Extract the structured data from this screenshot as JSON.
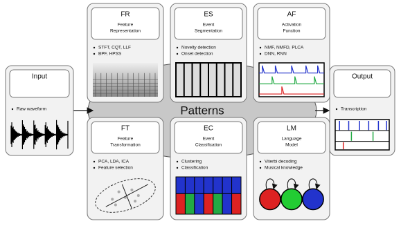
{
  "center_label": "Patterns",
  "input": {
    "title": "Input",
    "bullets": [
      "Raw waveform"
    ]
  },
  "output": {
    "title": "Output",
    "bullets": [
      "Transcription"
    ]
  },
  "nodes": [
    {
      "abbr": "FR",
      "title_lines": [
        "Feature",
        "Representation"
      ],
      "bullets": [
        "STFT, CQT, LLF",
        "BPF, HPSS"
      ]
    },
    {
      "abbr": "ES",
      "title_lines": [
        "Event",
        "Segmentation"
      ],
      "bullets": [
        "Novelty detection",
        "Onset detection"
      ]
    },
    {
      "abbr": "AF",
      "title_lines": [
        "Activation",
        "Function"
      ],
      "bullets": [
        "NMF, NMFD, PLCA",
        "DNN, RNN"
      ]
    },
    {
      "abbr": "FT",
      "title_lines": [
        "Feature",
        "Transformation"
      ],
      "bullets": [
        "PCA, LDA, ICA",
        "Feature selection"
      ]
    },
    {
      "abbr": "EC",
      "title_lines": [
        "Event",
        "Classification"
      ],
      "bullets": [
        "Clustering",
        "Classification"
      ]
    },
    {
      "abbr": "LM",
      "title_lines": [
        "Language",
        "Model"
      ],
      "bullets": [
        "Viterbi decoding",
        "Musical knowledge"
      ]
    }
  ]
}
